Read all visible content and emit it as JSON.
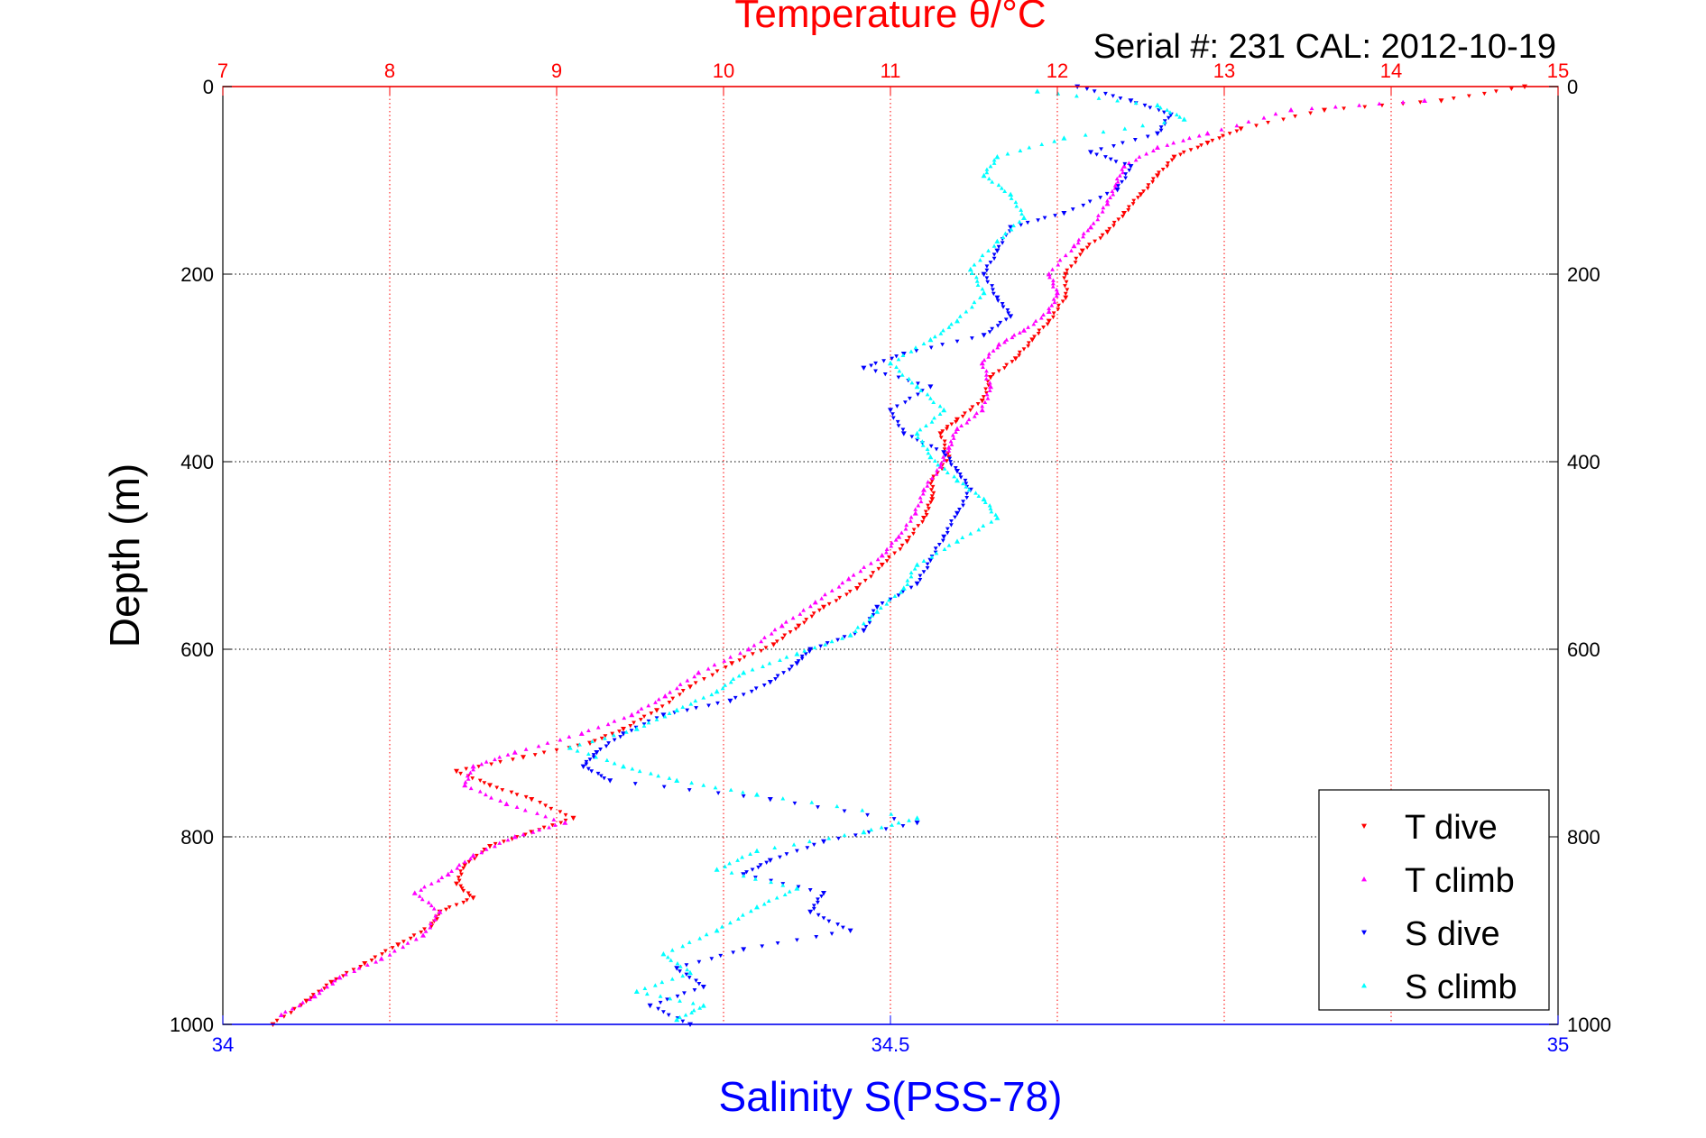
{
  "chart_data": {
    "type": "scatter",
    "title": "Temperature θ/°C",
    "subtitle": "Serial #: 231  CAL: 2012-10-19",
    "ylabel": "Depth (m)",
    "xlabel": "Salinity S(PSS-78)",
    "top_axis": {
      "label": "Temperature θ/°C",
      "range": [
        7,
        15
      ],
      "ticks": [
        7,
        8,
        9,
        10,
        11,
        12,
        13,
        14,
        15
      ],
      "tick_labels": [
        "7",
        "8",
        "9",
        "10",
        "11",
        "12",
        "13",
        "14",
        "15"
      ],
      "color": "#ff0000"
    },
    "bottom_axis": {
      "label": "Salinity S(PSS-78)",
      "range": [
        34,
        35
      ],
      "ticks": [
        34,
        34.5,
        35
      ],
      "tick_labels": [
        "34",
        "34.5",
        "35"
      ],
      "color": "#0000ff"
    },
    "y_axis": {
      "range": [
        0,
        1000
      ],
      "reversed": true,
      "ticks": [
        0,
        200,
        400,
        600,
        800,
        1000
      ],
      "tick_labels": [
        "0",
        "200",
        "400",
        "600",
        "800",
        "1000"
      ]
    },
    "grid": true,
    "legend_position": "bottom-right",
    "series": [
      {
        "name": "T dive",
        "color": "#ff0000",
        "marker": "triangle-down",
        "axis": "top",
        "points": [
          [
            14.8,
            0
          ],
          [
            14.3,
            15
          ],
          [
            13.6,
            25
          ],
          [
            13.1,
            45
          ],
          [
            12.9,
            60
          ],
          [
            12.7,
            75
          ],
          [
            12.6,
            95
          ],
          [
            12.5,
            115
          ],
          [
            12.4,
            135
          ],
          [
            12.3,
            155
          ],
          [
            12.15,
            175
          ],
          [
            12.05,
            200
          ],
          [
            12.05,
            225
          ],
          [
            11.95,
            250
          ],
          [
            11.85,
            270
          ],
          [
            11.75,
            290
          ],
          [
            11.6,
            310
          ],
          [
            11.55,
            335
          ],
          [
            11.4,
            355
          ],
          [
            11.3,
            370
          ],
          [
            11.35,
            395
          ],
          [
            11.25,
            420
          ],
          [
            11.25,
            440
          ],
          [
            11.2,
            460
          ],
          [
            11.1,
            485
          ],
          [
            10.95,
            510
          ],
          [
            10.8,
            535
          ],
          [
            10.6,
            555
          ],
          [
            10.45,
            575
          ],
          [
            10.3,
            595
          ],
          [
            10.05,
            615
          ],
          [
            9.8,
            640
          ],
          [
            9.6,
            665
          ],
          [
            9.4,
            685
          ],
          [
            9.2,
            700
          ],
          [
            8.8,
            715
          ],
          [
            8.4,
            730
          ],
          [
            8.6,
            745
          ],
          [
            8.85,
            760
          ],
          [
            9.1,
            780
          ],
          [
            8.85,
            795
          ],
          [
            8.6,
            810
          ],
          [
            8.45,
            830
          ],
          [
            8.4,
            850
          ],
          [
            8.5,
            865
          ],
          [
            8.3,
            880
          ],
          [
            8.25,
            895
          ],
          [
            8.05,
            915
          ],
          [
            7.85,
            935
          ],
          [
            7.65,
            955
          ],
          [
            7.5,
            975
          ],
          [
            7.3,
            1000
          ]
        ]
      },
      {
        "name": "T climb",
        "color": "#ff00ff",
        "marker": "triangle-up",
        "axis": "top",
        "points": [
          [
            14.2,
            15
          ],
          [
            13.4,
            25
          ],
          [
            12.9,
            50
          ],
          [
            12.6,
            65
          ],
          [
            12.4,
            85
          ],
          [
            12.35,
            105
          ],
          [
            12.3,
            125
          ],
          [
            12.2,
            150
          ],
          [
            12.1,
            170
          ],
          [
            11.95,
            200
          ],
          [
            12.0,
            220
          ],
          [
            11.95,
            240
          ],
          [
            11.8,
            260
          ],
          [
            11.65,
            275
          ],
          [
            11.55,
            295
          ],
          [
            11.6,
            320
          ],
          [
            11.55,
            345
          ],
          [
            11.4,
            365
          ],
          [
            11.35,
            385
          ],
          [
            11.3,
            405
          ],
          [
            11.2,
            430
          ],
          [
            11.15,
            455
          ],
          [
            11.05,
            480
          ],
          [
            10.95,
            500
          ],
          [
            10.75,
            525
          ],
          [
            10.55,
            550
          ],
          [
            10.35,
            575
          ],
          [
            10.15,
            600
          ],
          [
            9.85,
            625
          ],
          [
            9.65,
            650
          ],
          [
            9.45,
            670
          ],
          [
            9.15,
            690
          ],
          [
            8.75,
            710
          ],
          [
            8.5,
            725
          ],
          [
            8.45,
            745
          ],
          [
            8.7,
            765
          ],
          [
            9.05,
            785
          ],
          [
            8.75,
            800
          ],
          [
            8.5,
            820
          ],
          [
            8.35,
            840
          ],
          [
            8.15,
            860
          ],
          [
            8.3,
            880
          ],
          [
            8.2,
            905
          ],
          [
            7.95,
            930
          ],
          [
            7.7,
            950
          ],
          [
            7.55,
            970
          ],
          [
            7.35,
            990
          ]
        ]
      },
      {
        "name": "S dive",
        "color": "#0000ff",
        "marker": "triangle-down",
        "axis": "bottom",
        "points": [
          [
            34.64,
            0
          ],
          [
            34.68,
            15
          ],
          [
            34.71,
            30
          ],
          [
            34.7,
            50
          ],
          [
            34.65,
            70
          ],
          [
            34.68,
            85
          ],
          [
            34.67,
            110
          ],
          [
            34.63,
            135
          ],
          [
            34.59,
            150
          ],
          [
            34.58,
            175
          ],
          [
            34.57,
            200
          ],
          [
            34.58,
            225
          ],
          [
            34.59,
            245
          ],
          [
            34.57,
            265
          ],
          [
            34.51,
            285
          ],
          [
            34.48,
            300
          ],
          [
            34.53,
            320
          ],
          [
            34.5,
            345
          ],
          [
            34.51,
            370
          ],
          [
            34.54,
            390
          ],
          [
            34.55,
            410
          ],
          [
            34.56,
            430
          ],
          [
            34.55,
            455
          ],
          [
            34.54,
            480
          ],
          [
            34.53,
            505
          ],
          [
            34.52,
            530
          ],
          [
            34.49,
            555
          ],
          [
            34.48,
            580
          ],
          [
            34.44,
            600
          ],
          [
            34.43,
            615
          ],
          [
            34.41,
            635
          ],
          [
            34.38,
            655
          ],
          [
            34.33,
            670
          ],
          [
            34.3,
            690
          ],
          [
            34.28,
            710
          ],
          [
            34.27,
            725
          ],
          [
            34.29,
            740
          ],
          [
            34.41,
            760
          ],
          [
            34.52,
            785
          ],
          [
            34.45,
            805
          ],
          [
            34.41,
            825
          ],
          [
            34.39,
            840
          ],
          [
            34.45,
            860
          ],
          [
            34.44,
            880
          ],
          [
            34.47,
            900
          ],
          [
            34.39,
            920
          ],
          [
            34.34,
            940
          ],
          [
            34.36,
            960
          ],
          [
            34.32,
            980
          ],
          [
            34.35,
            1000
          ]
        ]
      },
      {
        "name": "S climb",
        "color": "#00ffff",
        "marker": "triangle-up",
        "axis": "bottom",
        "points": [
          [
            34.61,
            5
          ],
          [
            34.7,
            20
          ],
          [
            34.72,
            35
          ],
          [
            34.63,
            55
          ],
          [
            34.58,
            75
          ],
          [
            34.57,
            95
          ],
          [
            34.59,
            115
          ],
          [
            34.6,
            140
          ],
          [
            34.58,
            165
          ],
          [
            34.56,
            195
          ],
          [
            34.57,
            220
          ],
          [
            34.55,
            250
          ],
          [
            34.53,
            270
          ],
          [
            34.5,
            295
          ],
          [
            34.52,
            320
          ],
          [
            34.54,
            345
          ],
          [
            34.52,
            370
          ],
          [
            34.53,
            395
          ],
          [
            34.55,
            420
          ],
          [
            34.57,
            440
          ],
          [
            34.58,
            460
          ],
          [
            34.55,
            485
          ],
          [
            34.52,
            510
          ],
          [
            34.51,
            535
          ],
          [
            34.49,
            560
          ],
          [
            34.47,
            585
          ],
          [
            34.43,
            605
          ],
          [
            34.39,
            625
          ],
          [
            34.37,
            645
          ],
          [
            34.34,
            665
          ],
          [
            34.31,
            685
          ],
          [
            34.26,
            705
          ],
          [
            34.3,
            725
          ],
          [
            34.34,
            740
          ],
          [
            34.4,
            755
          ],
          [
            34.52,
            780
          ],
          [
            34.48,
            795
          ],
          [
            34.4,
            815
          ],
          [
            34.37,
            835
          ],
          [
            34.43,
            855
          ],
          [
            34.4,
            875
          ],
          [
            34.37,
            900
          ],
          [
            34.33,
            925
          ],
          [
            34.35,
            945
          ],
          [
            34.31,
            965
          ],
          [
            34.36,
            980
          ],
          [
            34.34,
            995
          ]
        ]
      }
    ]
  }
}
